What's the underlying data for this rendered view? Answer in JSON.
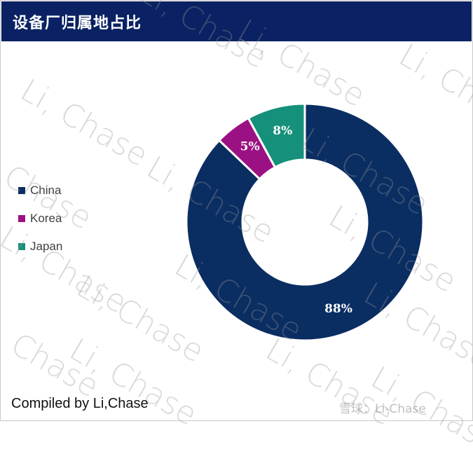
{
  "header": {
    "title": "设备厂归属地占比"
  },
  "legend": {
    "items": [
      {
        "label": "China",
        "color": "#0a2d62"
      },
      {
        "label": "Korea",
        "color": "#9b1183"
      },
      {
        "label": "Japan",
        "color": "#15907a"
      }
    ]
  },
  "footer": {
    "credit": "Compiled by Li,Chase",
    "watermark": "雪球：Li-Chase"
  },
  "watermark_text": "Li, Chase",
  "chart_data": {
    "type": "pie",
    "subtype": "donut",
    "title": "设备厂归属地占比",
    "categories": [
      "China",
      "Korea",
      "Japan"
    ],
    "values": [
      88,
      5,
      8
    ],
    "labels": [
      "88%",
      "5%",
      "8%"
    ],
    "colors": [
      "#0a2d62",
      "#9b1183",
      "#15907a"
    ],
    "legend_position": "left",
    "start_angle": "12 o'clock",
    "direction": "clockwise"
  }
}
